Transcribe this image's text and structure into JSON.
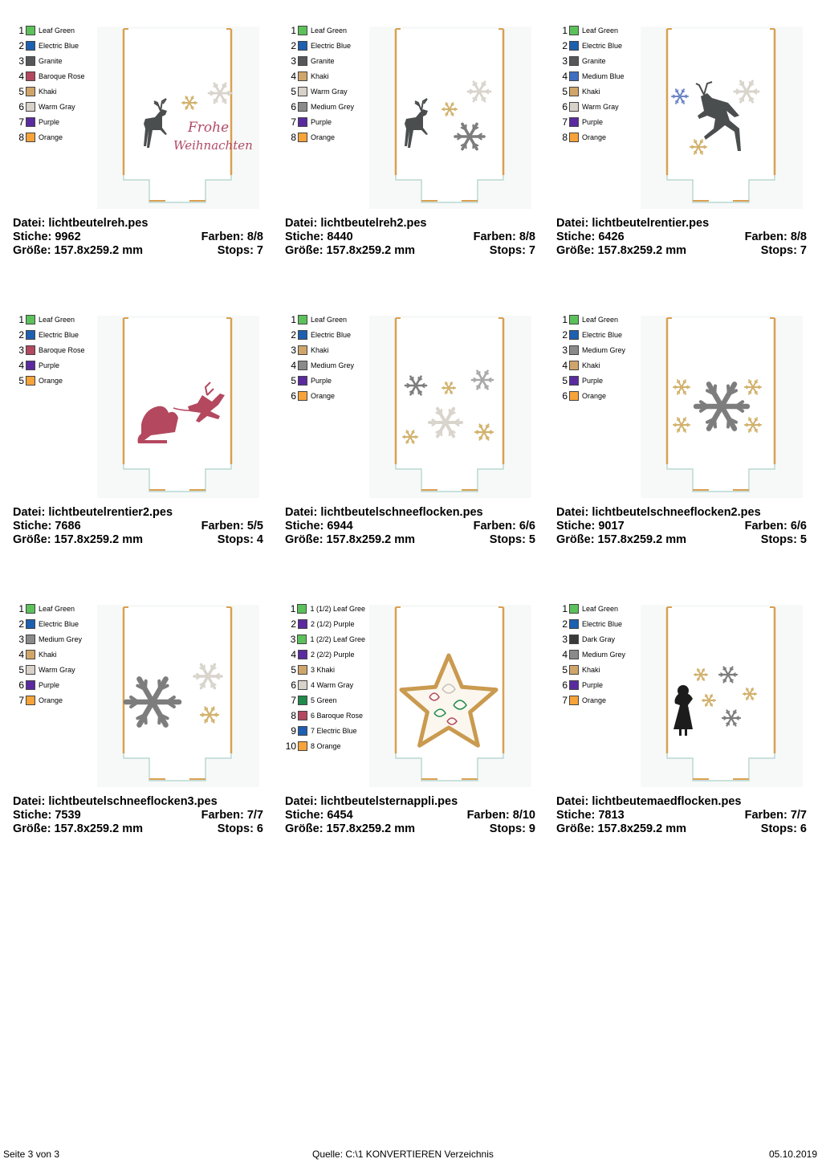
{
  "designs": [
    {
      "file": "Datei: lichtbeutelreh.pes",
      "stitches": "Stiche: 9962",
      "colors_count": "Farben: 8/8",
      "size": "Größe: 157.8x259.2 mm",
      "stops": "Stops: 7",
      "palette": [
        {
          "num": "1",
          "name": "Leaf Green",
          "color": "#5cc15a"
        },
        {
          "num": "2",
          "name": "Electric Blue",
          "color": "#1d5fb0"
        },
        {
          "num": "3",
          "name": "Granite",
          "color": "#55585a"
        },
        {
          "num": "4",
          "name": "Baroque Rose",
          "color": "#b3485f"
        },
        {
          "num": "5",
          "name": "Khaki",
          "color": "#d0a56a"
        },
        {
          "num": "6",
          "name": "Warm Gray",
          "color": "#d8d2c8"
        },
        {
          "num": "7",
          "name": "Purple",
          "color": "#5b2aa0"
        },
        {
          "num": "8",
          "name": "Orange",
          "color": "#f6a33a"
        }
      ],
      "motif": "reindeer-standing-frohe-weihnachten",
      "motif_text": [
        "Frohe",
        "Weihnachten"
      ]
    },
    {
      "file": "Datei: lichtbeutelreh2.pes",
      "stitches": "Stiche: 8440",
      "colors_count": "Farben: 8/8",
      "size": "Größe: 157.8x259.2 mm",
      "stops": "Stops: 7",
      "palette": [
        {
          "num": "1",
          "name": "Leaf Green",
          "color": "#5cc15a"
        },
        {
          "num": "2",
          "name": "Electric Blue",
          "color": "#1d5fb0"
        },
        {
          "num": "3",
          "name": "Granite",
          "color": "#55585a"
        },
        {
          "num": "4",
          "name": "Khaki",
          "color": "#d0a56a"
        },
        {
          "num": "5",
          "name": "Warm Gray",
          "color": "#d8d2c8"
        },
        {
          "num": "6",
          "name": "Medium Grey",
          "color": "#8a8a8a"
        },
        {
          "num": "7",
          "name": "Purple",
          "color": "#5b2aa0"
        },
        {
          "num": "8",
          "name": "Orange",
          "color": "#f6a33a"
        }
      ],
      "motif": "reindeer-standing-snowflakes"
    },
    {
      "file": "Datei: lichtbeutelrentier.pes",
      "stitches": "Stiche: 6426",
      "colors_count": "Farben: 8/8",
      "size": "Größe: 157.8x259.2 mm",
      "stops": "Stops: 7",
      "palette": [
        {
          "num": "1",
          "name": "Leaf Green",
          "color": "#5cc15a"
        },
        {
          "num": "2",
          "name": "Electric Blue",
          "color": "#1d5fb0"
        },
        {
          "num": "3",
          "name": "Granite",
          "color": "#55585a"
        },
        {
          "num": "4",
          "name": "Medium Blue",
          "color": "#3f6fc0"
        },
        {
          "num": "5",
          "name": "Khaki",
          "color": "#d0a56a"
        },
        {
          "num": "6",
          "name": "Warm Gray",
          "color": "#d8d2c8"
        },
        {
          "num": "7",
          "name": "Purple",
          "color": "#5b2aa0"
        },
        {
          "num": "8",
          "name": "Orange",
          "color": "#f6a33a"
        }
      ],
      "motif": "reindeer-leaping"
    },
    {
      "file": "Datei: lichtbeutelrentier2.pes",
      "stitches": "Stiche: 7686",
      "colors_count": "Farben: 5/5",
      "size": "Größe: 157.8x259.2 mm",
      "stops": "Stops: 4",
      "palette": [
        {
          "num": "1",
          "name": "Leaf Green",
          "color": "#5cc15a"
        },
        {
          "num": "2",
          "name": "Electric Blue",
          "color": "#1d5fb0"
        },
        {
          "num": "3",
          "name": "Baroque Rose",
          "color": "#b3485f"
        },
        {
          "num": "4",
          "name": "Purple",
          "color": "#5b2aa0"
        },
        {
          "num": "5",
          "name": "Orange",
          "color": "#f6a33a"
        }
      ],
      "motif": "santa-sleigh"
    },
    {
      "file": "Datei: lichtbeutelschneeflocken.pes",
      "stitches": "Stiche: 6944",
      "colors_count": "Farben: 6/6",
      "size": "Größe: 157.8x259.2 mm",
      "stops": "Stops: 5",
      "palette": [
        {
          "num": "1",
          "name": "Leaf Green",
          "color": "#5cc15a"
        },
        {
          "num": "2",
          "name": "Electric Blue",
          "color": "#1d5fb0"
        },
        {
          "num": "3",
          "name": "Khaki",
          "color": "#d0a56a"
        },
        {
          "num": "4",
          "name": "Medium Grey",
          "color": "#8a8a8a"
        },
        {
          "num": "5",
          "name": "Purple",
          "color": "#5b2aa0"
        },
        {
          "num": "6",
          "name": "Orange",
          "color": "#f6a33a"
        }
      ],
      "motif": "snowflakes-scattered"
    },
    {
      "file": "Datei: lichtbeutelschneeflocken2.pes",
      "stitches": "Stiche: 9017",
      "colors_count": "Farben: 6/6",
      "size": "Größe: 157.8x259.2 mm",
      "stops": "Stops: 5",
      "palette": [
        {
          "num": "1",
          "name": "Leaf Green",
          "color": "#5cc15a"
        },
        {
          "num": "2",
          "name": "Electric Blue",
          "color": "#1d5fb0"
        },
        {
          "num": "3",
          "name": "Medium Grey",
          "color": "#8a8a8a"
        },
        {
          "num": "4",
          "name": "Khaki",
          "color": "#d0a56a"
        },
        {
          "num": "5",
          "name": "Purple",
          "color": "#5b2aa0"
        },
        {
          "num": "6",
          "name": "Orange",
          "color": "#f6a33a"
        }
      ],
      "motif": "snowflake-large-center"
    },
    {
      "file": "Datei: lichtbeutelschneeflocken3.pes",
      "stitches": "Stiche: 7539",
      "colors_count": "Farben: 7/7",
      "size": "Größe: 157.8x259.2 mm",
      "stops": "Stops: 6",
      "palette": [
        {
          "num": "1",
          "name": "Leaf Green",
          "color": "#5cc15a"
        },
        {
          "num": "2",
          "name": "Electric Blue",
          "color": "#1d5fb0"
        },
        {
          "num": "3",
          "name": "Medium Grey",
          "color": "#8a8a8a"
        },
        {
          "num": "4",
          "name": "Khaki",
          "color": "#d0a56a"
        },
        {
          "num": "5",
          "name": "Warm Gray",
          "color": "#d8d2c8"
        },
        {
          "num": "6",
          "name": "Purple",
          "color": "#5b2aa0"
        },
        {
          "num": "7",
          "name": "Orange",
          "color": "#f6a33a"
        }
      ],
      "motif": "snowflakes-three"
    },
    {
      "file": "Datei: lichtbeutelsternappli.pes",
      "stitches": "Stiche: 6454",
      "colors_count": "Farben: 8/10",
      "size": "Größe: 157.8x259.2 mm",
      "stops": "Stops: 9",
      "palette": [
        {
          "num": "1",
          "name": "1 (1/2) Leaf Gree",
          "color": "#5cc15a"
        },
        {
          "num": "2",
          "name": "2 (1/2) Purple",
          "color": "#5b2aa0"
        },
        {
          "num": "3",
          "name": "1 (2/2) Leaf Gree",
          "color": "#5cc15a"
        },
        {
          "num": "4",
          "name": "2 (2/2) Purple",
          "color": "#5b2aa0"
        },
        {
          "num": "5",
          "name": "3 Khaki",
          "color": "#d0a56a"
        },
        {
          "num": "6",
          "name": "4 Warm Gray",
          "color": "#d8d2c8"
        },
        {
          "num": "7",
          "name": "5 Green",
          "color": "#1f8a4c"
        },
        {
          "num": "8",
          "name": "6 Baroque Rose",
          "color": "#b3485f"
        },
        {
          "num": "9",
          "name": "7 Electric Blue",
          "color": "#1d5fb0"
        },
        {
          "num": "10",
          "name": "8 Orange",
          "color": "#f6a33a"
        }
      ],
      "motif": "star-applique"
    },
    {
      "file": "Datei: lichtbeutemaedflocken.pes",
      "stitches": "Stiche: 7813",
      "colors_count": "Farben: 7/7",
      "size": "Größe: 157.8x259.2 mm",
      "stops": "Stops: 6",
      "palette": [
        {
          "num": "1",
          "name": "Leaf Green",
          "color": "#5cc15a"
        },
        {
          "num": "2",
          "name": "Electric Blue",
          "color": "#1d5fb0"
        },
        {
          "num": "3",
          "name": "Dark Gray",
          "color": "#3a3a3a"
        },
        {
          "num": "4",
          "name": "Medium Grey",
          "color": "#8a8a8a"
        },
        {
          "num": "5",
          "name": "Khaki",
          "color": "#d0a56a"
        },
        {
          "num": "6",
          "name": "Purple",
          "color": "#5b2aa0"
        },
        {
          "num": "7",
          "name": "Orange",
          "color": "#f6a33a"
        }
      ],
      "motif": "girl-snowflakes"
    }
  ],
  "footer": {
    "page": "Seite 3 von 3",
    "source": "Quelle: C:\\1 KONVERTIEREN Verzeichnis",
    "date": "05.10.2019"
  }
}
